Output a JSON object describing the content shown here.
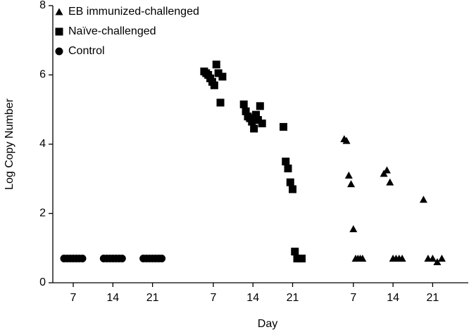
{
  "chart_data": {
    "type": "dot",
    "xlabel": "Day",
    "ylabel": "Log Copy Number",
    "categories": [
      "7",
      "14",
      "21",
      "7",
      "14",
      "21",
      "7",
      "14",
      "21"
    ],
    "ylim": [
      0,
      8
    ],
    "yticks": [
      0,
      2,
      4,
      6,
      8
    ],
    "grid": false,
    "legend": "top-left",
    "series": [
      {
        "name": "EB immunized-challenged",
        "color": "#000000",
        "marker": "triangle",
        "values": [
          null,
          null,
          null,
          null,
          null,
          null,
          [
            4.15,
            4.1,
            3.1,
            2.85,
            1.55,
            0.7,
            0.7,
            0.7,
            0.7
          ],
          [
            3.15,
            3.25,
            2.9,
            0.7,
            0.7,
            0.7,
            0.7
          ],
          [
            2.4,
            0.7,
            0.7,
            0.6,
            0.7
          ]
        ]
      },
      {
        "name": "Naïve-challenged",
        "color": "#000000",
        "marker": "square",
        "values": [
          null,
          null,
          null,
          [
            6.1,
            6.05,
            6.0,
            5.9,
            5.8,
            5.7,
            6.3,
            6.05,
            5.2,
            5.95
          ],
          [
            5.15,
            4.95,
            4.8,
            4.75,
            4.65,
            4.45,
            4.85,
            4.7,
            5.1,
            4.6
          ],
          [
            4.5,
            3.5,
            3.3,
            2.9,
            2.7,
            0.9,
            0.7,
            0.7,
            0.7
          ],
          null,
          null,
          null
        ]
      },
      {
        "name": "Control",
        "color": "#000000",
        "marker": "circle",
        "values": [
          [
            0.7,
            0.7,
            0.7,
            0.7,
            0.7,
            0.7,
            0.7
          ],
          [
            0.7,
            0.7,
            0.7,
            0.7,
            0.7,
            0.7,
            0.7
          ],
          [
            0.7,
            0.7,
            0.7,
            0.7,
            0.7,
            0.7,
            0.7
          ],
          null,
          null,
          null,
          null,
          null,
          null
        ]
      }
    ]
  }
}
